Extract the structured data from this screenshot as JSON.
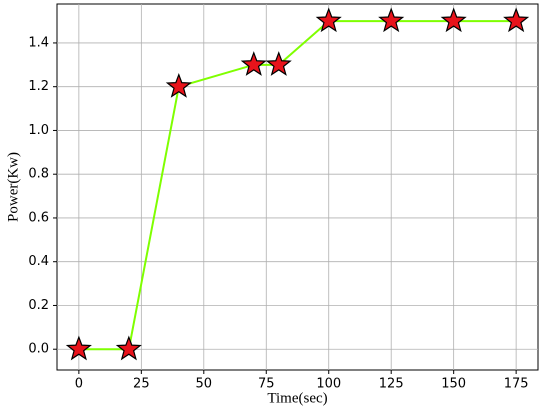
{
  "chart_data": {
    "type": "line",
    "x_label": "Time(sec)",
    "y_label": "Power(Kw)",
    "x": [
      0,
      20,
      40,
      70,
      80,
      100,
      125,
      150,
      175
    ],
    "series": [
      {
        "color": "#7fff00",
        "marker_color": "#e8131b",
        "values": [
          0,
          0,
          1.2,
          1.3,
          1.3,
          1.5,
          1.5,
          1.5,
          1.5
        ]
      }
    ],
    "xlim": [
      -8.75,
      183.75
    ],
    "ylim": [
      -0.095,
      1.578
    ],
    "xticks": [
      0,
      25,
      50,
      75,
      100,
      125,
      150,
      175
    ],
    "yticks": [
      {
        "value": 0,
        "label": "0.0"
      },
      0.2,
      0.4,
      0.6,
      0.8,
      {
        "value": 1,
        "label": "1.0"
      },
      1.2,
      1.4
    ],
    "grid": true
  }
}
